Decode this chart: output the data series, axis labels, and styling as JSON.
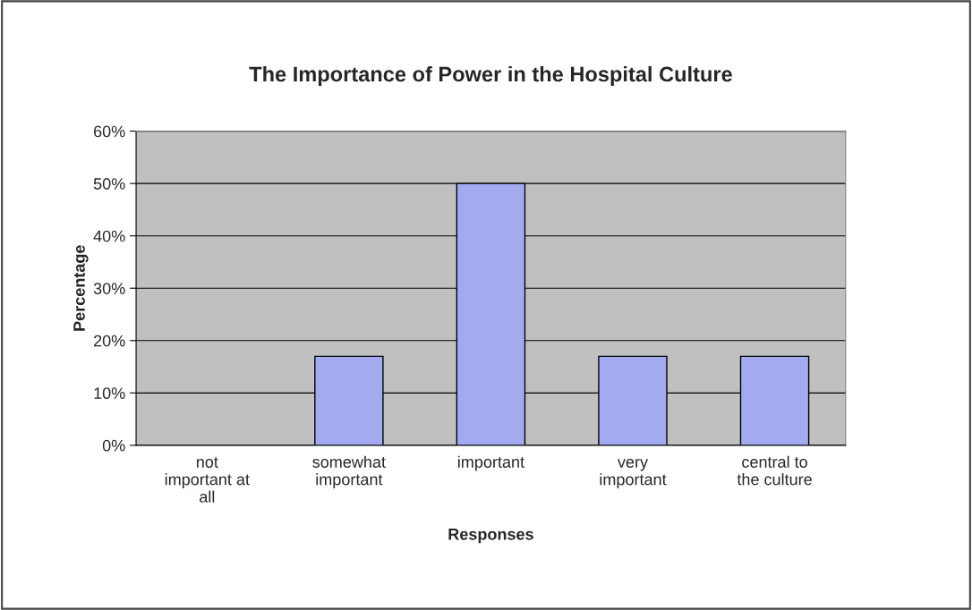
{
  "chart_data": {
    "type": "bar",
    "title": "The Importance of Power in the Hospital Culture",
    "xlabel": "Responses",
    "ylabel": "Percentage",
    "categories": [
      "not\nimportant at\nall",
      "somewhat\nimportant",
      "important",
      "very\nimportant",
      "central to\nthe culture"
    ],
    "values": [
      0,
      17,
      50,
      17,
      17
    ],
    "color": "#a3aaf0",
    "ylim": [
      0,
      60
    ],
    "yticks": [
      {
        "value": 0,
        "label": "0%"
      },
      {
        "value": 10,
        "label": "10%"
      },
      {
        "value": 20,
        "label": "20%"
      },
      {
        "value": 30,
        "label": "30%"
      },
      {
        "value": 40,
        "label": "40%"
      },
      {
        "value": 50,
        "label": "50%"
      },
      {
        "value": 60,
        "label": "60%"
      }
    ],
    "grid": "y",
    "legend": false
  }
}
